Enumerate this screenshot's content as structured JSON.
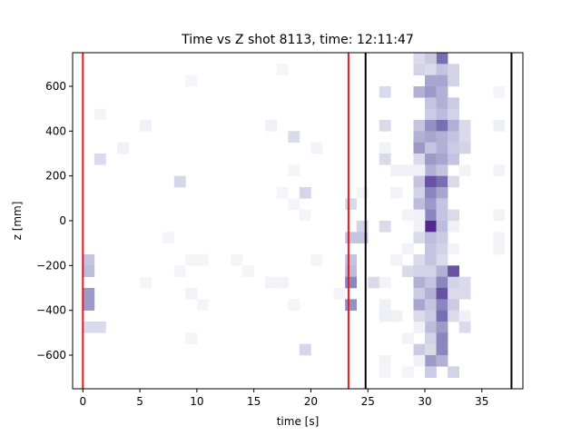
{
  "chart_data": {
    "type": "heatmap",
    "title": "Time vs Z shot 8113, time: 12:11:47",
    "xlabel": "time [s]",
    "ylabel": "z [mm]",
    "xlim": [
      -0.9,
      38.6
    ],
    "ylim": [
      -750,
      750
    ],
    "xticks": [
      0,
      5,
      10,
      15,
      20,
      25,
      30,
      35
    ],
    "yticks": [
      -600,
      -400,
      -200,
      0,
      200,
      400,
      600
    ],
    "colormap": "Purples",
    "value_range": [
      0,
      10
    ],
    "cell_width": 1.0,
    "cell_height": 50,
    "cells": [
      {
        "t": 29.5,
        "z": 725,
        "v": 1.5
      },
      {
        "t": 31.5,
        "z": 725,
        "v": 7
      },
      {
        "t": 30.5,
        "z": 725,
        "v": 2.5
      },
      {
        "t": 29.5,
        "z": 675,
        "v": 2
      },
      {
        "t": 30.5,
        "z": 675,
        "v": 1.5
      },
      {
        "t": 31.5,
        "z": 675,
        "v": 3
      },
      {
        "t": 32.5,
        "z": 675,
        "v": 2
      },
      {
        "t": 30.5,
        "z": 625,
        "v": 4.5
      },
      {
        "t": 31.5,
        "z": 625,
        "v": 4.5
      },
      {
        "t": 32.5,
        "z": 625,
        "v": 2
      },
      {
        "t": 29.5,
        "z": 575,
        "v": 4
      },
      {
        "t": 30.5,
        "z": 575,
        "v": 5
      },
      {
        "t": 31.5,
        "z": 575,
        "v": 4
      },
      {
        "t": 26.5,
        "z": 575,
        "v": 1.5
      },
      {
        "t": 17.5,
        "z": 675,
        "v": 0.3
      },
      {
        "t": 9.5,
        "z": 625,
        "v": 0.3
      },
      {
        "t": 36.5,
        "z": 575,
        "v": 0.3
      },
      {
        "t": 30.5,
        "z": 525,
        "v": 3
      },
      {
        "t": 31.5,
        "z": 525,
        "v": 4
      },
      {
        "t": 32.5,
        "z": 525,
        "v": 2.5
      },
      {
        "t": 30.5,
        "z": 475,
        "v": 2.5
      },
      {
        "t": 31.5,
        "z": 475,
        "v": 3.5
      },
      {
        "t": 32.5,
        "z": 475,
        "v": 2
      },
      {
        "t": 29.5,
        "z": 425,
        "v": 3
      },
      {
        "t": 30.5,
        "z": 425,
        "v": 5.5
      },
      {
        "t": 31.5,
        "z": 425,
        "v": 7
      },
      {
        "t": 32.5,
        "z": 425,
        "v": 4
      },
      {
        "t": 33.5,
        "z": 425,
        "v": 1.5
      },
      {
        "t": 26.5,
        "z": 425,
        "v": 1.5
      },
      {
        "t": 16.5,
        "z": 425,
        "v": 0.5
      },
      {
        "t": 5.5,
        "z": 425,
        "v": 0.5
      },
      {
        "t": 36.5,
        "z": 425,
        "v": 0.6
      },
      {
        "t": 29.5,
        "z": 375,
        "v": 4
      },
      {
        "t": 30.5,
        "z": 375,
        "v": 4.5
      },
      {
        "t": 31.5,
        "z": 375,
        "v": 4
      },
      {
        "t": 32.5,
        "z": 375,
        "v": 3
      },
      {
        "t": 33.5,
        "z": 375,
        "v": 1.5
      },
      {
        "t": 18.5,
        "z": 375,
        "v": 1.5
      },
      {
        "t": 1.5,
        "z": 475,
        "v": 0.3
      },
      {
        "t": 29.5,
        "z": 325,
        "v": 5
      },
      {
        "t": 30.5,
        "z": 325,
        "v": 3
      },
      {
        "t": 31.5,
        "z": 325,
        "v": 4
      },
      {
        "t": 32.5,
        "z": 325,
        "v": 2.5
      },
      {
        "t": 33.5,
        "z": 325,
        "v": 2
      },
      {
        "t": 26.5,
        "z": 325,
        "v": 0.4
      },
      {
        "t": 20.5,
        "z": 325,
        "v": 0.4
      },
      {
        "t": 3.5,
        "z": 325,
        "v": 0.5
      },
      {
        "t": 29.5,
        "z": 275,
        "v": 1.5
      },
      {
        "t": 30.5,
        "z": 275,
        "v": 5
      },
      {
        "t": 31.5,
        "z": 275,
        "v": 4.5
      },
      {
        "t": 32.5,
        "z": 275,
        "v": 3
      },
      {
        "t": 26.5,
        "z": 275,
        "v": 1.5
      },
      {
        "t": 1.5,
        "z": 275,
        "v": 1.5
      },
      {
        "t": 30.5,
        "z": 225,
        "v": 4
      },
      {
        "t": 31.5,
        "z": 225,
        "v": 3
      },
      {
        "t": 29.5,
        "z": 225,
        "v": 0.5
      },
      {
        "t": 28.5,
        "z": 225,
        "v": 0.5
      },
      {
        "t": 27.5,
        "z": 225,
        "v": 0.5
      },
      {
        "t": 33.5,
        "z": 225,
        "v": 0.4
      },
      {
        "t": 36.5,
        "z": 225,
        "v": 0.4
      },
      {
        "t": 18.5,
        "z": 225,
        "v": 0.3
      },
      {
        "t": 29.5,
        "z": 175,
        "v": 3
      },
      {
        "t": 30.5,
        "z": 175,
        "v": 8
      },
      {
        "t": 31.5,
        "z": 175,
        "v": 7
      },
      {
        "t": 32.5,
        "z": 175,
        "v": 1.5
      },
      {
        "t": 8.5,
        "z": 175,
        "v": 1.8
      },
      {
        "t": 29.5,
        "z": 125,
        "v": 2
      },
      {
        "t": 30.5,
        "z": 125,
        "v": 6
      },
      {
        "t": 31.5,
        "z": 125,
        "v": 4.5
      },
      {
        "t": 27.5,
        "z": 125,
        "v": 0.4
      },
      {
        "t": 24.5,
        "z": 125,
        "v": 0.4
      },
      {
        "t": 17.5,
        "z": 125,
        "v": 0.3
      },
      {
        "t": 19.5,
        "z": 125,
        "v": 1.8
      },
      {
        "t": 29.5,
        "z": 75,
        "v": 3.5
      },
      {
        "t": 30.5,
        "z": 75,
        "v": 5
      },
      {
        "t": 31.5,
        "z": 75,
        "v": 3
      },
      {
        "t": 23.5,
        "z": 75,
        "v": 1.5
      },
      {
        "t": 18.5,
        "z": 75,
        "v": 0.3
      },
      {
        "t": 30.5,
        "z": 25,
        "v": 6
      },
      {
        "t": 31.5,
        "z": 25,
        "v": 3
      },
      {
        "t": 29.5,
        "z": 25,
        "v": 0.5
      },
      {
        "t": 28.5,
        "z": 25,
        "v": 0.4
      },
      {
        "t": 32.5,
        "z": 25,
        "v": 1.5
      },
      {
        "t": 36.5,
        "z": 25,
        "v": 0.4
      },
      {
        "t": 19.5,
        "z": 25,
        "v": 0.3
      },
      {
        "t": 30.5,
        "z": -25,
        "v": 9
      },
      {
        "t": 31.5,
        "z": -25,
        "v": 3.5
      },
      {
        "t": 29.5,
        "z": -25,
        "v": 0.5
      },
      {
        "t": 26.5,
        "z": -25,
        "v": 1.5
      },
      {
        "t": 24.5,
        "z": -25,
        "v": 2
      },
      {
        "t": 32.5,
        "z": -25,
        "v": 0.5
      },
      {
        "t": 29.5,
        "z": -75,
        "v": 1.5
      },
      {
        "t": 30.5,
        "z": -75,
        "v": 3.5
      },
      {
        "t": 31.5,
        "z": -75,
        "v": 2.5
      },
      {
        "t": 23.5,
        "z": -75,
        "v": 3
      },
      {
        "t": 24.5,
        "z": -75,
        "v": 3
      },
      {
        "t": 36.5,
        "z": -75,
        "v": 0.4
      },
      {
        "t": 7.5,
        "z": -75,
        "v": 0.3
      },
      {
        "t": 30.5,
        "z": -125,
        "v": 3
      },
      {
        "t": 31.5,
        "z": -125,
        "v": 2
      },
      {
        "t": 28.5,
        "z": -125,
        "v": 0.4
      },
      {
        "t": 32.5,
        "z": -125,
        "v": 0.4
      },
      {
        "t": 36.5,
        "z": -125,
        "v": 0.4
      },
      {
        "t": 29.5,
        "z": -175,
        "v": 1.5
      },
      {
        "t": 30.5,
        "z": -175,
        "v": 3
      },
      {
        "t": 31.5,
        "z": -175,
        "v": 1.5
      },
      {
        "t": 0.5,
        "z": -175,
        "v": 3
      },
      {
        "t": 23.5,
        "z": -175,
        "v": 3
      },
      {
        "t": 9.5,
        "z": -175,
        "v": 0.3
      },
      {
        "t": 10.5,
        "z": -175,
        "v": 0.3
      },
      {
        "t": 13.5,
        "z": -175,
        "v": 0.3
      },
      {
        "t": 20.5,
        "z": -175,
        "v": 0.3
      },
      {
        "t": 27.5,
        "z": -175,
        "v": 0.4
      },
      {
        "t": 28.5,
        "z": -225,
        "v": 1.5
      },
      {
        "t": 29.5,
        "z": -225,
        "v": 2
      },
      {
        "t": 30.5,
        "z": -225,
        "v": 2
      },
      {
        "t": 31.5,
        "z": -225,
        "v": 4
      },
      {
        "t": 32.5,
        "z": -225,
        "v": 8
      },
      {
        "t": 0.5,
        "z": -225,
        "v": 3.5
      },
      {
        "t": 23.5,
        "z": -225,
        "v": 3.5
      },
      {
        "t": 8.5,
        "z": -225,
        "v": 0.3
      },
      {
        "t": 14.5,
        "z": -225,
        "v": 0.3
      },
      {
        "t": 29.5,
        "z": -275,
        "v": 4
      },
      {
        "t": 30.5,
        "z": -275,
        "v": 3
      },
      {
        "t": 31.5,
        "z": -275,
        "v": 6
      },
      {
        "t": 32.5,
        "z": -275,
        "v": 2
      },
      {
        "t": 33.5,
        "z": -275,
        "v": 1.5
      },
      {
        "t": 23.5,
        "z": -275,
        "v": 6
      },
      {
        "t": 25.5,
        "z": -275,
        "v": 1.5
      },
      {
        "t": 5.5,
        "z": -275,
        "v": 0.3
      },
      {
        "t": 16.5,
        "z": -275,
        "v": 0.4
      },
      {
        "t": 17.5,
        "z": -275,
        "v": 0.4
      },
      {
        "t": 26.5,
        "z": -275,
        "v": 0.4
      },
      {
        "t": 29.5,
        "z": -325,
        "v": 2.5
      },
      {
        "t": 30.5,
        "z": -325,
        "v": 4
      },
      {
        "t": 31.5,
        "z": -325,
        "v": 8
      },
      {
        "t": 32.5,
        "z": -325,
        "v": 1.5
      },
      {
        "t": 33.5,
        "z": -325,
        "v": 1.5
      },
      {
        "t": 0.5,
        "z": -325,
        "v": 5
      },
      {
        "t": 9.5,
        "z": -325,
        "v": 0.4
      },
      {
        "t": 22.5,
        "z": -325,
        "v": 0.3
      },
      {
        "t": 29.5,
        "z": -375,
        "v": 4.5
      },
      {
        "t": 30.5,
        "z": -375,
        "v": 3
      },
      {
        "t": 31.5,
        "z": -375,
        "v": 6
      },
      {
        "t": 32.5,
        "z": -375,
        "v": 2.5
      },
      {
        "t": 26.5,
        "z": -375,
        "v": 0.5
      },
      {
        "t": 23.5,
        "z": -375,
        "v": 5.5
      },
      {
        "t": 0.5,
        "z": -375,
        "v": 5
      },
      {
        "t": 10.5,
        "z": -375,
        "v": 0.3
      },
      {
        "t": 18.5,
        "z": -375,
        "v": 0.3
      },
      {
        "t": 29.5,
        "z": -425,
        "v": 1.5
      },
      {
        "t": 30.5,
        "z": -425,
        "v": 2.5
      },
      {
        "t": 31.5,
        "z": -425,
        "v": 7
      },
      {
        "t": 32.5,
        "z": -425,
        "v": 1.5
      },
      {
        "t": 26.5,
        "z": -425,
        "v": 0.6
      },
      {
        "t": 27.5,
        "z": -425,
        "v": 0.5
      },
      {
        "t": 33.5,
        "z": -425,
        "v": 0.5
      },
      {
        "t": 0.5,
        "z": -475,
        "v": 1.5
      },
      {
        "t": 1.5,
        "z": -475,
        "v": 1.5
      },
      {
        "t": 30.5,
        "z": -475,
        "v": 3.5
      },
      {
        "t": 31.5,
        "z": -475,
        "v": 5
      },
      {
        "t": 29.5,
        "z": -475,
        "v": 0.5
      },
      {
        "t": 33.5,
        "z": -475,
        "v": 1.5
      },
      {
        "t": 30.5,
        "z": -525,
        "v": 2
      },
      {
        "t": 31.5,
        "z": -525,
        "v": 6
      },
      {
        "t": 9.5,
        "z": -525,
        "v": 0.3
      },
      {
        "t": 28.5,
        "z": -525,
        "v": 0.4
      },
      {
        "t": 29.5,
        "z": -575,
        "v": 2.5
      },
      {
        "t": 30.5,
        "z": -575,
        "v": 1.5
      },
      {
        "t": 31.5,
        "z": -575,
        "v": 6
      },
      {
        "t": 19.5,
        "z": -575,
        "v": 1.8
      },
      {
        "t": 30.5,
        "z": -625,
        "v": 5
      },
      {
        "t": 31.5,
        "z": -625,
        "v": 4
      },
      {
        "t": 26.5,
        "z": -625,
        "v": 0.4
      },
      {
        "t": 29.5,
        "z": -625,
        "v": 0.5
      },
      {
        "t": 30.5,
        "z": -675,
        "v": 2.5
      },
      {
        "t": 32.5,
        "z": -675,
        "v": 2
      },
      {
        "t": 26.5,
        "z": -675,
        "v": 0.3
      },
      {
        "t": 28.5,
        "z": -675,
        "v": 0.3
      }
    ],
    "vlines": [
      {
        "x": 0.0,
        "color": "#e31a1c"
      },
      {
        "x": 23.3,
        "color": "#e31a1c"
      },
      {
        "x": 24.8,
        "color": "#000000"
      },
      {
        "x": 37.6,
        "color": "#000000"
      }
    ],
    "grid": false,
    "legend": "none"
  }
}
